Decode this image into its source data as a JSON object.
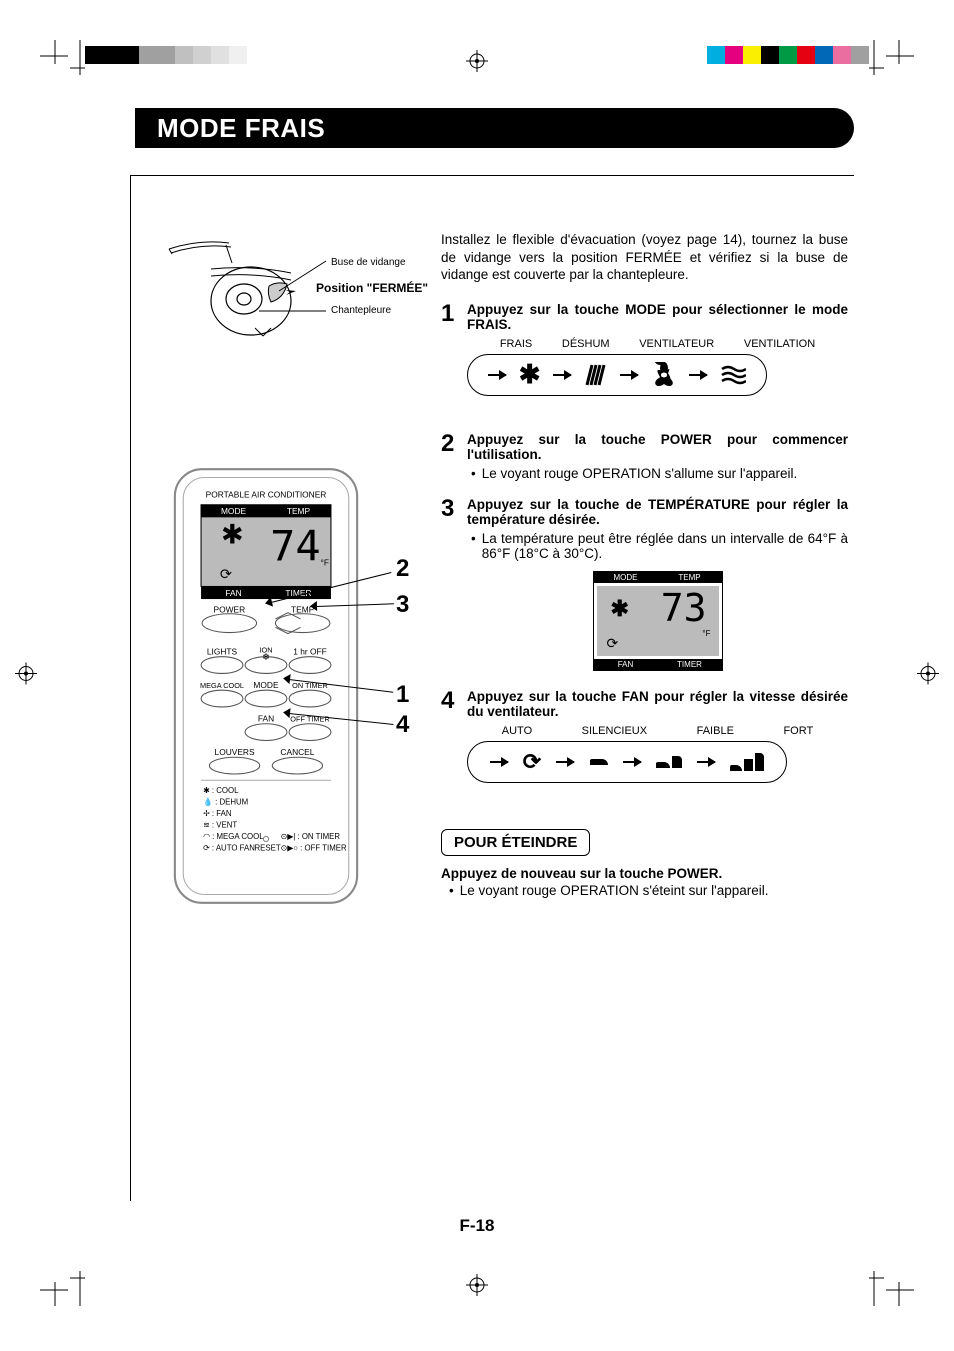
{
  "header": {
    "title": "MODE FRAIS"
  },
  "page_number": "F-18",
  "drain_diagram": {
    "nozzle_label": "Buse de vidange",
    "position_label": "Position \"FERMÉE\"",
    "flap_label": "Chantepleure"
  },
  "intro": "Installez le flexible d'évacuation (voyez page 14), tournez la buse de vidange vers la position FERMÉE et vérifiez si la buse de vidange est couverte par la chantepleure.",
  "steps": [
    {
      "n": "1",
      "title": "Appuyez sur la touche MODE pour sélectionner le mode FRAIS.",
      "mode_labels": [
        "FRAIS",
        "DÉSHUM",
        "VENTILATEUR",
        "VENTILATION"
      ]
    },
    {
      "n": "2",
      "title": "Appuyez sur la touche POWER pour commencer l'utilisation.",
      "bullet": "Le voyant rouge OPERATION s'allume sur l'appareil."
    },
    {
      "n": "3",
      "title": "Appuyez sur la touche de TEMPÉRATURE pour régler la température désirée.",
      "bullet": "La température peut être réglée dans un intervalle de 64°F à 86°F (18°C à 30°C).",
      "display": {
        "top": [
          "MODE",
          "TEMP"
        ],
        "bottom": [
          "FAN",
          "TIMER"
        ],
        "temp": "73",
        "unit": "°F"
      }
    },
    {
      "n": "4",
      "title": "Appuyez sur la touche FAN pour régler la vitesse désirée du ventilateur.",
      "fan_labels": [
        "AUTO",
        "SILENCIEUX",
        "FAIBLE",
        "FORT"
      ]
    }
  ],
  "turn_off": {
    "heading": "POUR ÉTEINDRE",
    "title": "Appuyez de nouveau sur la touche POWER.",
    "bullet": "Le voyant rouge OPERATION s'éteint sur l'appareil."
  },
  "remote": {
    "brand": "PORTABLE AIR CONDITIONER",
    "lcd_top": [
      "MODE",
      "TEMP"
    ],
    "lcd_bottom": [
      "FAN",
      "TIMER"
    ],
    "temp": "74",
    "unit": "°F",
    "btn_rows": [
      [
        "POWER",
        "TEMP"
      ],
      [
        "LIGHTS",
        "ION",
        "1 hr OFF"
      ],
      [
        "MEGA COOL",
        "MODE",
        "ON TIMER"
      ],
      [
        "",
        "FAN",
        "OFF TIMER"
      ],
      [
        "LOUVERS",
        "CANCEL"
      ]
    ],
    "legend": [
      "✱ : COOL",
      "💧 : DEHUM",
      "✢ : FAN",
      "≋ : VENT",
      "◠ : MEGA COOL",
      "⟳ : AUTO FAN",
      "RESET",
      "⊙▶| : ON TIMER",
      "⊙▶○ : OFF TIMER"
    ]
  },
  "callout_labels": [
    "2",
    "3",
    "1",
    "4"
  ],
  "colors": {
    "black": "#000000",
    "white": "#ffffff",
    "lcd_gray": "#bbbbbb",
    "title_bg": "#000000",
    "print_bar_left": [
      "#000000",
      "#000000",
      "#000000",
      "#a0a0a0",
      "#a0a0a0",
      "#c0c0c0",
      "#d0d0d0",
      "#e0e0e0",
      "#f0f0f0"
    ],
    "print_bar_right": [
      "#00aee0",
      "#e4007f",
      "#faef00",
      "#000000",
      "#009944",
      "#e50012",
      "#0068b6",
      "#eb6ea0",
      "#a0a0a0"
    ]
  }
}
